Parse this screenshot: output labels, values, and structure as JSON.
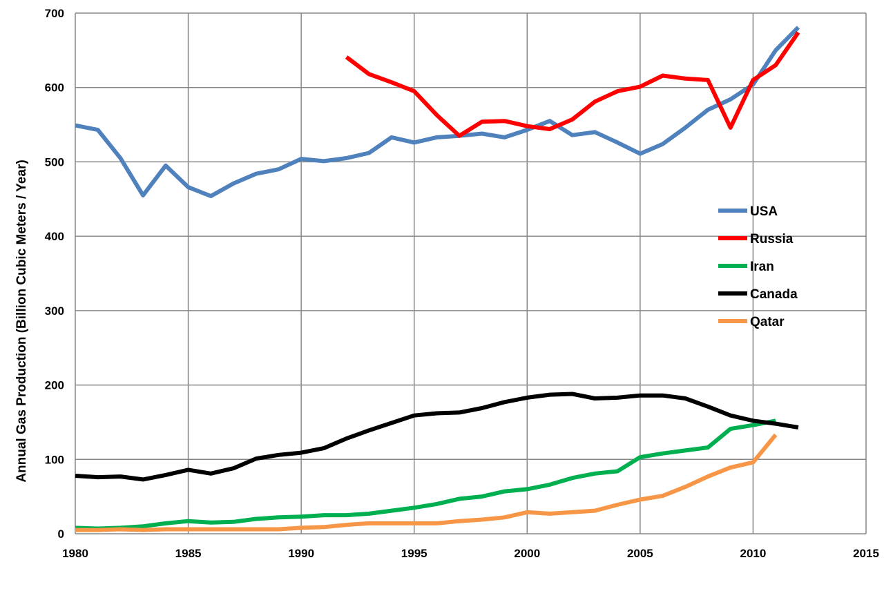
{
  "chart_data": {
    "type": "line",
    "title": "",
    "xlabel": "",
    "ylabel": "Annual Gas Production (Billion Cubic Meters / Year)",
    "xlim": [
      1980,
      2015
    ],
    "ylim": [
      0,
      700
    ],
    "x_ticks": [
      1980,
      1985,
      1990,
      1995,
      2000,
      2005,
      2010,
      2015
    ],
    "y_ticks": [
      0,
      100,
      200,
      300,
      400,
      500,
      600,
      700
    ],
    "grid": true,
    "legend_position": "right",
    "series": [
      {
        "name": "USA",
        "color": "#4f81bd",
        "x": [
          1980,
          1981,
          1982,
          1983,
          1984,
          1985,
          1986,
          1987,
          1988,
          1989,
          1990,
          1991,
          1992,
          1993,
          1994,
          1995,
          1996,
          1997,
          1998,
          1999,
          2000,
          2001,
          2002,
          2003,
          2004,
          2005,
          2006,
          2007,
          2008,
          2009,
          2010,
          2011,
          2012
        ],
        "y": [
          549,
          543,
          505,
          455,
          495,
          466,
          454,
          471,
          484,
          490,
          504,
          501,
          505,
          512,
          533,
          526,
          533,
          535,
          538,
          533,
          543,
          555,
          536,
          540,
          526,
          511,
          524,
          546,
          570,
          584,
          604,
          650,
          681
        ]
      },
      {
        "name": "Russia",
        "color": "#ff0000",
        "x": [
          1992,
          1993,
          1994,
          1995,
          1996,
          1997,
          1998,
          1999,
          2000,
          2001,
          2002,
          2003,
          2004,
          2005,
          2006,
          2007,
          2008,
          2009,
          2010,
          2011,
          2012
        ],
        "y": [
          641,
          618,
          607,
          595,
          563,
          535,
          554,
          555,
          548,
          544,
          557,
          581,
          595,
          601,
          616,
          612,
          610,
          546,
          610,
          630,
          674
        ]
      },
      {
        "name": "Iran",
        "color": "#00b050",
        "x": [
          1980,
          1981,
          1982,
          1983,
          1984,
          1985,
          1986,
          1987,
          1988,
          1989,
          1990,
          1991,
          1992,
          1993,
          1994,
          1995,
          1996,
          1997,
          1998,
          1999,
          2000,
          2001,
          2002,
          2003,
          2004,
          2005,
          2006,
          2007,
          2008,
          2009,
          2010,
          2011
        ],
        "y": [
          8,
          7,
          8,
          10,
          14,
          17,
          15,
          16,
          20,
          22,
          23,
          25,
          25,
          27,
          31,
          35,
          40,
          47,
          50,
          57,
          60,
          66,
          75,
          81,
          84,
          103,
          108,
          112,
          116,
          141,
          146,
          152
        ]
      },
      {
        "name": "Canada",
        "color": "#000000",
        "x": [
          1980,
          1981,
          1982,
          1983,
          1984,
          1985,
          1986,
          1987,
          1988,
          1989,
          1990,
          1991,
          1992,
          1993,
          1994,
          1995,
          1996,
          1997,
          1998,
          1999,
          2000,
          2001,
          2002,
          2003,
          2004,
          2005,
          2006,
          2007,
          2008,
          2009,
          2010,
          2011,
          2012
        ],
        "y": [
          78,
          76,
          77,
          73,
          79,
          86,
          81,
          88,
          101,
          106,
          109,
          115,
          128,
          139,
          149,
          159,
          162,
          163,
          169,
          177,
          183,
          187,
          188,
          182,
          183,
          186,
          186,
          182,
          171,
          159,
          152,
          148,
          143
        ]
      },
      {
        "name": "Qatar",
        "color": "#f79646",
        "x": [
          1980,
          1981,
          1982,
          1983,
          1984,
          1985,
          1986,
          1987,
          1988,
          1989,
          1990,
          1991,
          1992,
          1993,
          1994,
          1995,
          1996,
          1997,
          1998,
          1999,
          2000,
          2001,
          2002,
          2003,
          2004,
          2005,
          2006,
          2007,
          2008,
          2009,
          2010,
          2011
        ],
        "y": [
          5,
          5,
          6,
          5,
          6,
          6,
          6,
          6,
          6,
          6,
          8,
          9,
          12,
          14,
          14,
          14,
          14,
          17,
          19,
          22,
          29,
          27,
          29,
          31,
          39,
          46,
          51,
          63,
          77,
          89,
          96,
          133
        ]
      }
    ]
  }
}
